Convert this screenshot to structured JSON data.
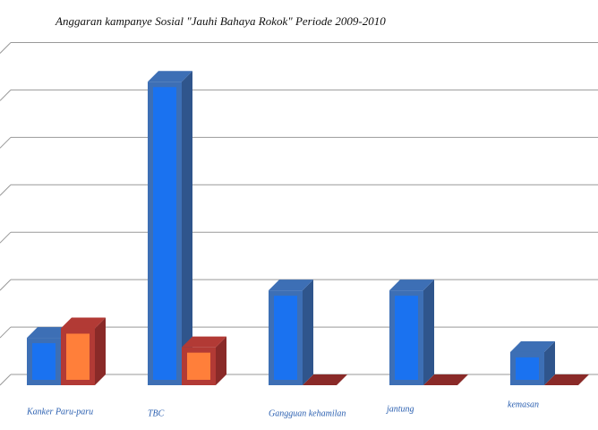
{
  "chart_data": {
    "type": "bar3d",
    "title": "Anggaran kampanye Sosial \"Jauhi Bahaya Rokok\" Periode 2009-2010",
    "categories": [
      "Kanker Paru-paru",
      "TBC",
      "Gangguan kehamilan",
      "jantung",
      "kemasan"
    ],
    "series": [
      {
        "color": "#1a72f0",
        "values": [
          1.0,
          6.4,
          2.0,
          2.0,
          0.7
        ]
      },
      {
        "color": "#ff7f3a",
        "values": [
          1.2,
          0.8,
          0,
          0,
          0
        ]
      }
    ],
    "ylim": [
      0,
      7.5
    ],
    "yticks": [
      0,
      1,
      2,
      3,
      4,
      5,
      6,
      7
    ],
    "grid": true
  }
}
